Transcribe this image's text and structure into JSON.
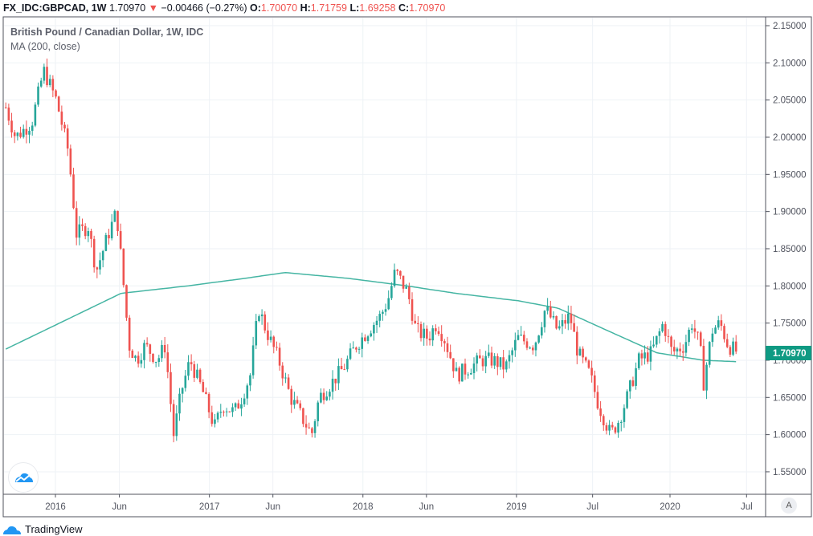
{
  "header": {
    "symbol": "FX_IDC:GBPCAD, 1W",
    "last": "1.70970",
    "change": "−0.00466 (−0.27%)",
    "o_label": "O:",
    "o": "1.70070",
    "h_label": "H:",
    "h": "1.71759",
    "l_label": "L:",
    "l": "1.69258",
    "c_label": "C:",
    "c": "1.70970"
  },
  "legend": {
    "title": "British Pound / Canadian Dollar, 1W, IDC",
    "indicator": "MA (200, close)"
  },
  "footer": {
    "brand": "TradingView"
  },
  "auto_button": "A",
  "colors": {
    "up": "#26a69a",
    "down": "#ef5350",
    "ma": "#45b5a3",
    "grid": "#eef2f6",
    "price_label_bg": "#0f9a83"
  },
  "chart_data": {
    "type": "candlestick",
    "title": "British Pound / Canadian Dollar, 1W, IDC",
    "interval": "1W",
    "ylim": [
      1.52,
      2.16
    ],
    "y_ticks": [
      "2.15000",
      "2.10000",
      "2.05000",
      "2.00000",
      "1.95000",
      "1.90000",
      "1.85000",
      "1.80000",
      "1.75000",
      "1.70000",
      "1.65000",
      "1.60000",
      "1.55000"
    ],
    "x_ticks": [
      {
        "label": "2016",
        "date": "2016-01-01"
      },
      {
        "label": "Jun",
        "date": "2016-06-01"
      },
      {
        "label": "2017",
        "date": "2017-01-01"
      },
      {
        "label": "Jun",
        "date": "2017-06-01"
      },
      {
        "label": "2018",
        "date": "2018-01-01"
      },
      {
        "label": "Jun",
        "date": "2018-06-01"
      },
      {
        "label": "2019",
        "date": "2019-01-01"
      },
      {
        "label": "Jul",
        "date": "2019-07-01"
      },
      {
        "label": "2020",
        "date": "2020-01-01"
      },
      {
        "label": "Jul",
        "date": "2020-07-01"
      }
    ],
    "grid": true,
    "last_price": "1.70970",
    "close_path": [
      [
        "2015-09-05",
        2.04
      ],
      [
        "2015-09-28",
        2.0
      ],
      [
        "2015-11-06",
        2.02
      ],
      [
        "2015-12-04",
        2.09
      ],
      [
        "2016-01-03",
        2.05
      ],
      [
        "2016-02-01",
        1.98
      ],
      [
        "2016-02-20",
        1.87
      ],
      [
        "2016-03-19",
        1.88
      ],
      [
        "2016-04-07",
        1.82
      ],
      [
        "2016-05-06",
        1.87
      ],
      [
        "2016-05-25",
        1.9
      ],
      [
        "2016-06-08",
        1.82
      ],
      [
        "2016-06-24",
        1.72
      ],
      [
        "2016-07-12",
        1.7
      ],
      [
        "2016-08-01",
        1.72
      ],
      [
        "2016-08-30",
        1.7
      ],
      [
        "2016-09-18",
        1.72
      ],
      [
        "2016-10-08",
        1.6
      ],
      [
        "2016-10-27",
        1.66
      ],
      [
        "2016-11-16",
        1.7
      ],
      [
        "2016-12-15",
        1.66
      ],
      [
        "2017-01-13",
        1.61
      ],
      [
        "2017-02-02",
        1.64
      ],
      [
        "2017-03-01",
        1.63
      ],
      [
        "2017-03-19",
        1.65
      ],
      [
        "2017-04-08",
        1.68
      ],
      [
        "2017-04-28",
        1.77
      ],
      [
        "2017-05-16",
        1.74
      ],
      [
        "2017-06-15",
        1.7
      ],
      [
        "2017-07-13",
        1.65
      ],
      [
        "2017-08-12",
        1.62
      ],
      [
        "2017-09-01",
        1.6
      ],
      [
        "2017-09-19",
        1.65
      ],
      [
        "2017-10-19",
        1.67
      ],
      [
        "2017-11-16",
        1.69
      ],
      [
        "2017-12-16",
        1.72
      ],
      [
        "2018-01-13",
        1.74
      ],
      [
        "2018-02-12",
        1.76
      ],
      [
        "2018-03-01",
        1.78
      ],
      [
        "2018-03-19",
        1.82
      ],
      [
        "2018-04-18",
        1.79
      ],
      [
        "2018-05-07",
        1.74
      ],
      [
        "2018-06-05",
        1.73
      ],
      [
        "2018-06-25",
        1.75
      ],
      [
        "2018-07-13",
        1.73
      ],
      [
        "2018-08-12",
        1.68
      ],
      [
        "2018-09-10",
        1.69
      ],
      [
        "2018-10-09",
        1.7
      ],
      [
        "2018-11-07",
        1.7
      ],
      [
        "2018-12-06",
        1.69
      ],
      [
        "2019-01-04",
        1.73
      ],
      [
        "2019-02-12",
        1.72
      ],
      [
        "2019-03-11",
        1.77
      ],
      [
        "2019-04-09",
        1.74
      ],
      [
        "2019-05-08",
        1.76
      ],
      [
        "2019-05-27",
        1.71
      ],
      [
        "2019-06-25",
        1.68
      ],
      [
        "2019-07-15",
        1.64
      ],
      [
        "2019-08-13",
        1.6
      ],
      [
        "2019-09-02",
        1.62
      ],
      [
        "2019-09-21",
        1.65
      ],
      [
        "2019-10-19",
        1.7
      ],
      [
        "2019-11-18",
        1.71
      ],
      [
        "2019-12-16",
        1.75
      ],
      [
        "2020-01-06",
        1.71
      ],
      [
        "2020-02-04",
        1.72
      ],
      [
        "2020-02-22",
        1.75
      ],
      [
        "2020-03-12",
        1.72
      ],
      [
        "2020-03-21",
        1.67
      ],
      [
        "2020-04-10",
        1.74
      ],
      [
        "2020-04-29",
        1.75
      ],
      [
        "2020-05-18",
        1.72
      ],
      [
        "2020-06-12",
        1.7097
      ]
    ],
    "ma_path": [
      [
        "2015-09-05",
        1.715
      ],
      [
        "2016-06-05",
        1.79
      ],
      [
        "2016-11-10",
        1.8
      ],
      [
        "2017-03-25",
        1.81
      ],
      [
        "2017-06-30",
        1.818
      ],
      [
        "2017-11-30",
        1.81
      ],
      [
        "2018-04-15",
        1.8
      ],
      [
        "2018-08-10",
        1.79
      ],
      [
        "2019-01-05",
        1.78
      ],
      [
        "2019-04-10",
        1.77
      ],
      [
        "2019-08-05",
        1.74
      ],
      [
        "2019-12-01",
        1.71
      ],
      [
        "2020-03-20",
        1.7
      ],
      [
        "2020-06-12",
        1.698
      ]
    ]
  }
}
